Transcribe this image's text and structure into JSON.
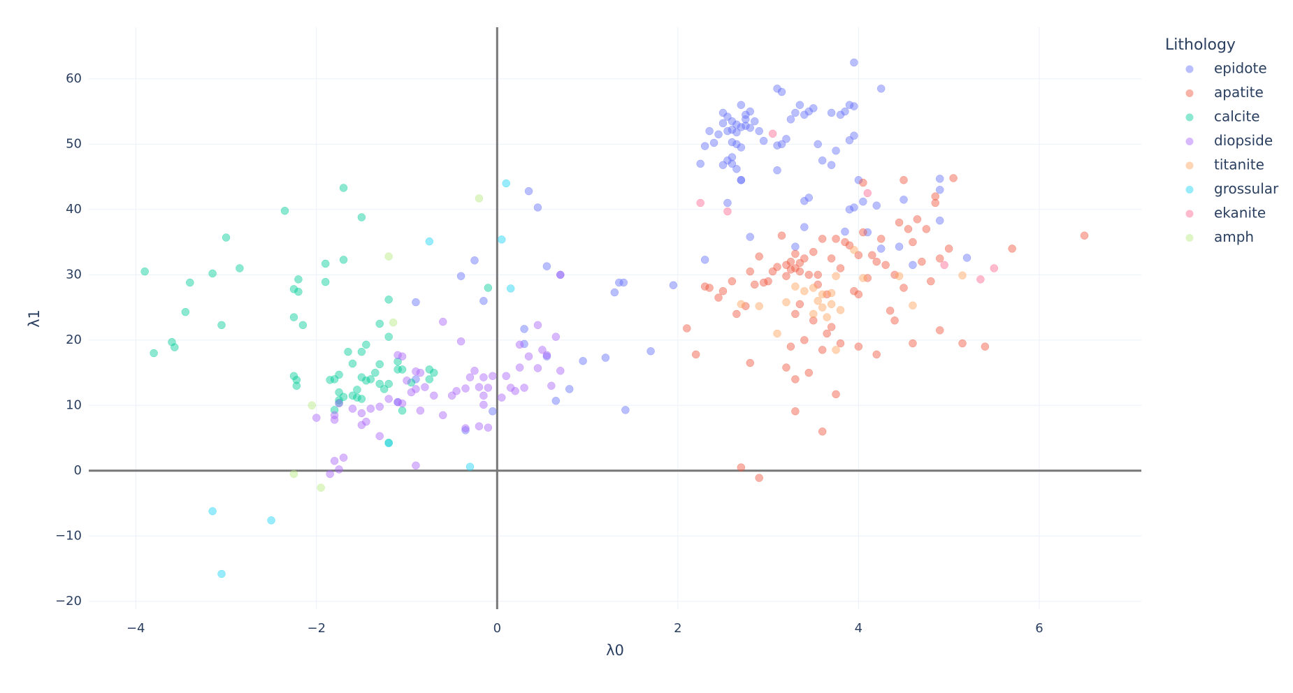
{
  "chart_data": {
    "type": "scatter",
    "x_label": "λ0",
    "y_label": "λ1",
    "legend_title": "Lithology",
    "xlim": [
      -4.52,
      7.13
    ],
    "ylim": [
      -21.2,
      67.9
    ],
    "grid": true,
    "zeroline": true,
    "legend_position": "right",
    "xticks": [
      {
        "value": -4,
        "label": "−4"
      },
      {
        "value": -2,
        "label": "−2"
      },
      0,
      2,
      4,
      6
    ],
    "yticks": [
      {
        "value": -20,
        "label": "−20"
      },
      {
        "value": -10,
        "label": "−10"
      },
      0,
      10,
      20,
      30,
      40,
      50,
      60
    ],
    "series": [
      {
        "name": "epidote",
        "color": "#636efa",
        "x": [
          2.5,
          2.55,
          2.6,
          2.65,
          2.7,
          2.75,
          2.8,
          2.6,
          2.65,
          2.7,
          2.55,
          2.5,
          2.45,
          2.4,
          2.35,
          2.6,
          2.7,
          2.75,
          2.85,
          2.9,
          2.95,
          2.6,
          2.65,
          2.7,
          2.75,
          2.55,
          2.5,
          2.6,
          2.65,
          2.8,
          3.1,
          3.15,
          3.2,
          3.25,
          3.3,
          3.35,
          3.4,
          3.45,
          3.5,
          3.55,
          3.7,
          3.8,
          3.85,
          3.9,
          3.95,
          3.95,
          3.95,
          4.25,
          3.1,
          3.15,
          3.9,
          3.75,
          3.7,
          3.6,
          3.1,
          2.7,
          2.25,
          2.3,
          2.3,
          2.55,
          2.8,
          3.3,
          3.4,
          3.4,
          3.45,
          4.0,
          4.2,
          4.05,
          3.95,
          4.45,
          3.85,
          4.1,
          4.9,
          4.9,
          4.5,
          4.9,
          5.2,
          4.6,
          4.25,
          3.9,
          1.35,
          1.4,
          1.3,
          1.95,
          1.7,
          1.2,
          0.95,
          0.8,
          0.65,
          1.42,
          0.45,
          0.35,
          -0.25,
          -0.4,
          -0.15,
          -0.9,
          0.55,
          0.7,
          0.3,
          0.3,
          -0.05,
          -0.35,
          0.55,
          -0.9,
          -1.1
        ],
        "y": [
          54.8,
          54.2,
          53.5,
          53.0,
          52.6,
          53.8,
          55.0,
          52.2,
          51.8,
          56.0,
          52.0,
          53.2,
          51.5,
          50.2,
          52.0,
          48.0,
          49.5,
          54.5,
          53.5,
          52.0,
          50.5,
          47.0,
          46.2,
          44.5,
          52.8,
          47.5,
          46.8,
          50.3,
          50.0,
          52.5,
          49.8,
          50.0,
          50.8,
          53.8,
          54.8,
          56.0,
          54.5,
          55.0,
          55.5,
          50.0,
          54.8,
          54.5,
          55.0,
          56.0,
          55.8,
          62.5,
          51.3,
          58.5,
          58.5,
          58.0,
          50.6,
          49.0,
          46.8,
          47.5,
          46.0,
          44.5,
          47.0,
          49.7,
          32.3,
          41.0,
          35.8,
          34.3,
          37.3,
          41.3,
          41.8,
          44.5,
          40.6,
          41.2,
          40.3,
          34.3,
          36.6,
          36.5,
          44.7,
          43.0,
          41.5,
          38.3,
          32.6,
          31.5,
          34.0,
          40.0,
          28.8,
          28.8,
          27.3,
          28.4,
          18.3,
          17.3,
          16.8,
          12.5,
          10.7,
          9.3,
          40.3,
          42.8,
          32.2,
          29.8,
          26.0,
          25.8,
          31.3,
          30.0,
          21.7,
          19.4,
          9.1,
          6.2,
          17.5,
          14.0,
          10.5
        ]
      },
      {
        "name": "apatite",
        "color": "#ef553b",
        "x": [
          3.2,
          3.25,
          3.3,
          3.35,
          3.4,
          3.3,
          3.25,
          3.2,
          3.35,
          3.45,
          3.1,
          3.0,
          2.9,
          2.85,
          2.8,
          3.5,
          3.6,
          3.7,
          3.8,
          3.9,
          4.0,
          4.1,
          4.2,
          4.3,
          4.4,
          4.5,
          4.6,
          4.7,
          4.8,
          4.9,
          3.15,
          3.05,
          2.95,
          3.55,
          3.65,
          3.75,
          3.85,
          3.95,
          4.05,
          4.15,
          4.25,
          4.35,
          4.45,
          4.55,
          4.65,
          4.75,
          4.85,
          5.0,
          5.15,
          5.4,
          5.7,
          2.1,
          2.2,
          2.35,
          2.45,
          2.5,
          2.6,
          2.75,
          2.8,
          3.3,
          3.4,
          3.5,
          3.6,
          3.7,
          3.8,
          4.0,
          4.2,
          4.6,
          4.9,
          3.2,
          3.3,
          3.45,
          3.55,
          6.5,
          2.7,
          2.9,
          3.6,
          3.3,
          3.75,
          5.05,
          4.5,
          4.05,
          2.3,
          2.65,
          4.85,
          4.4,
          4.0,
          3.65,
          3.35,
          3.25
        ],
        "y": [
          31.5,
          32.0,
          31.0,
          30.5,
          32.5,
          33.2,
          30.8,
          29.8,
          31.8,
          30.0,
          31.2,
          29.0,
          32.8,
          28.5,
          30.5,
          33.5,
          35.5,
          32.5,
          31.0,
          34.5,
          33.0,
          29.5,
          32.0,
          31.5,
          30.0,
          28.0,
          35.0,
          32.0,
          29.0,
          32.5,
          36.0,
          30.5,
          28.8,
          30.0,
          27.0,
          35.5,
          35.0,
          27.5,
          36.5,
          33.0,
          35.5,
          24.5,
          38.0,
          37.0,
          38.5,
          37.0,
          41.0,
          34.0,
          19.5,
          19.0,
          34.0,
          21.8,
          17.8,
          28.0,
          26.5,
          27.5,
          29.0,
          25.2,
          16.5,
          24.0,
          20.0,
          23.0,
          18.5,
          22.0,
          19.5,
          19.0,
          17.8,
          19.5,
          21.5,
          15.8,
          14.0,
          15.0,
          28.5,
          36.0,
          0.5,
          -1.1,
          6.0,
          9.1,
          11.7,
          44.8,
          44.5,
          44.1,
          28.2,
          24.0,
          42.0,
          23.0,
          27.0,
          21.0,
          25.5,
          19.0
        ]
      },
      {
        "name": "calcite",
        "color": "#00cc96",
        "x": [
          -3.9,
          -3.8,
          -3.6,
          -3.57,
          -3.45,
          -3.4,
          -3.15,
          -3.05,
          -3.0,
          -2.85,
          -2.35,
          -2.25,
          -2.2,
          -2.2,
          -2.15,
          -2.25,
          -2.25,
          -2.22,
          -2.22,
          -1.9,
          -1.9,
          -1.7,
          -1.7,
          -1.5,
          -1.65,
          -1.5,
          -1.45,
          -1.3,
          -1.2,
          -1.2,
          -1.1,
          -1.3,
          -1.1,
          -1.05,
          -1.85,
          -1.8,
          -1.75,
          -1.6,
          -1.5,
          -1.45,
          -1.4,
          -1.3,
          -1.2,
          -1.25,
          -1.55,
          -1.6,
          -1.7,
          -1.75,
          -1.75,
          -1.55,
          -1.5,
          -1.8,
          -1.05,
          -0.95,
          -0.75,
          -0.7,
          -0.75,
          -0.1,
          -1.2,
          -1.35,
          -1.75
        ],
        "y": [
          30.5,
          18.0,
          19.7,
          18.9,
          24.3,
          28.8,
          30.2,
          22.3,
          35.7,
          31.0,
          39.8,
          27.8,
          29.3,
          27.4,
          22.3,
          23.5,
          14.5,
          13.9,
          13.0,
          31.7,
          28.9,
          43.3,
          32.3,
          38.8,
          18.2,
          18.2,
          19.3,
          22.5,
          26.2,
          20.5,
          16.7,
          16.3,
          15.5,
          15.5,
          13.9,
          14.0,
          14.7,
          16.4,
          14.3,
          13.8,
          14.0,
          13.3,
          13.3,
          12.5,
          12.4,
          11.5,
          11.3,
          10.8,
          12.0,
          11.2,
          11.0,
          9.3,
          9.2,
          13.5,
          14.0,
          15.0,
          15.5,
          28.0,
          4.3,
          15.0,
          10.4
        ]
      },
      {
        "name": "diopside",
        "color": "#ab63fa",
        "x": [
          -2.0,
          -1.8,
          -1.8,
          -1.75,
          -1.6,
          -1.5,
          -1.5,
          -1.45,
          -1.4,
          -1.3,
          -1.3,
          -1.2,
          -1.1,
          -1.05,
          -1.0,
          -0.95,
          -0.9,
          -0.85,
          -0.85,
          -0.8,
          -0.7,
          -0.6,
          -0.5,
          -0.45,
          -0.35,
          -0.3,
          -0.25,
          -0.2,
          -0.15,
          -0.1,
          -0.05,
          -0.15,
          -0.15,
          -0.1,
          -0.2,
          -0.35,
          -0.4,
          -0.6,
          0.05,
          0.1,
          0.15,
          0.2,
          0.25,
          0.25,
          0.35,
          0.45,
          0.45,
          0.5,
          0.55,
          0.6,
          0.7,
          0.65,
          0.7,
          -1.8,
          -1.7,
          -1.75,
          -1.85,
          -0.9,
          -1.05,
          -0.9,
          0.3,
          -1.1
        ],
        "y": [
          8.1,
          8.5,
          7.8,
          10.3,
          9.5,
          8.8,
          7.0,
          7.5,
          9.5,
          9.8,
          5.3,
          11.0,
          10.5,
          10.3,
          13.8,
          12.0,
          12.5,
          15.0,
          9.2,
          12.8,
          11.5,
          8.5,
          11.5,
          12.2,
          12.6,
          14.3,
          15.3,
          12.8,
          14.3,
          12.7,
          14.5,
          11.5,
          10.1,
          6.6,
          6.8,
          6.5,
          19.8,
          22.8,
          11.2,
          14.5,
          12.7,
          12.2,
          15.8,
          19.3,
          17.5,
          15.7,
          22.3,
          18.5,
          17.7,
          13.0,
          15.3,
          20.5,
          30.0,
          1.5,
          2.0,
          0.2,
          -0.5,
          0.8,
          17.5,
          15.2,
          12.7,
          17.7
        ]
      },
      {
        "name": "titanite",
        "color": "#ffa15a",
        "x": [
          2.7,
          3.1,
          3.3,
          3.5,
          3.55,
          3.6,
          3.6,
          3.7,
          3.7,
          3.65,
          3.75,
          3.8,
          3.75,
          4.05,
          4.45,
          4.6,
          5.15,
          3.95,
          3.5,
          3.4,
          3.2,
          2.9
        ],
        "y": [
          25.5,
          21.0,
          28.2,
          24.0,
          26.0,
          25.0,
          27.0,
          27.2,
          25.5,
          23.5,
          18.5,
          24.6,
          29.8,
          29.5,
          29.8,
          25.3,
          29.9,
          33.8,
          28.0,
          27.5,
          25.8,
          25.2
        ]
      },
      {
        "name": "grossular",
        "color": "#19d3f3",
        "x": [
          0.1,
          -0.75,
          0.05,
          0.15,
          -0.3,
          -3.15,
          -2.5,
          -3.05,
          -1.2
        ],
        "y": [
          44.0,
          35.1,
          35.4,
          27.9,
          0.6,
          -6.2,
          -7.6,
          -15.8,
          4.2
        ]
      },
      {
        "name": "ekanite",
        "color": "#ff6692",
        "x": [
          3.05,
          2.25,
          2.55,
          5.35,
          5.5,
          4.95,
          4.1
        ],
        "y": [
          51.6,
          41.0,
          39.7,
          29.3,
          31.0,
          31.5,
          42.5
        ]
      },
      {
        "name": "amph",
        "color": "#b6e880",
        "x": [
          -0.2,
          -1.2,
          -1.15,
          -2.05,
          -2.25,
          -1.95
        ],
        "y": [
          41.7,
          32.8,
          22.7,
          10.0,
          -0.5,
          -2.6
        ]
      }
    ]
  }
}
